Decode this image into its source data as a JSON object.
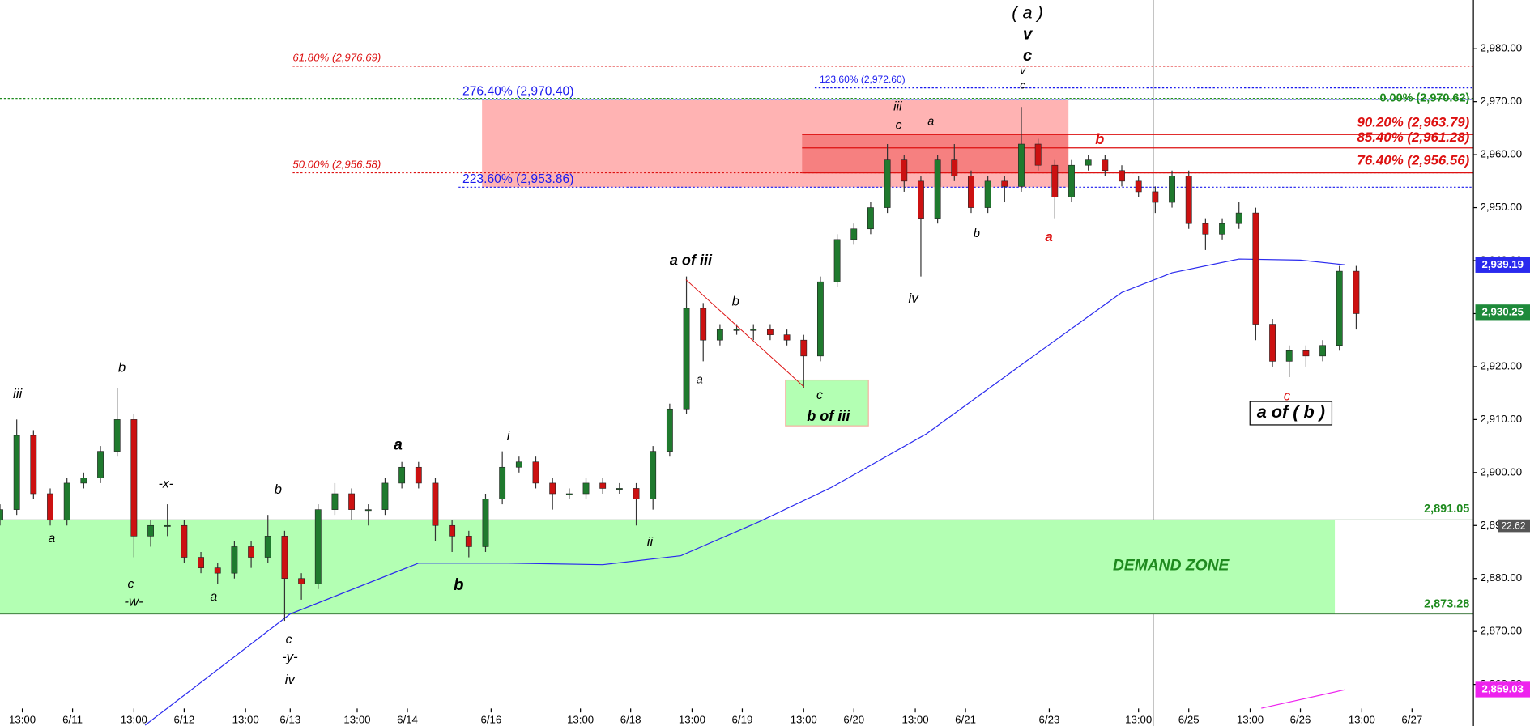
{
  "chart_data": {
    "type": "candlestick",
    "x": [
      0,
      3,
      6,
      9,
      12,
      15,
      18,
      21,
      24,
      27,
      30,
      33,
      36,
      39,
      42,
      45,
      48,
      51,
      54,
      57,
      60,
      63,
      66,
      69,
      72,
      75,
      78,
      81,
      84,
      87,
      90,
      93,
      96,
      99,
      102,
      105,
      108,
      111,
      114,
      117,
      120,
      123,
      126,
      129,
      132,
      135,
      138,
      141,
      144,
      147,
      150,
      153,
      156,
      159,
      162,
      165,
      168,
      171,
      174,
      177,
      180,
      183,
      186,
      189,
      192,
      195,
      198,
      201,
      204,
      207,
      210,
      213,
      216,
      219,
      222,
      225,
      228,
      231,
      234,
      237,
      240,
      243
    ],
    "open": [
      2891,
      2893,
      2907,
      2896,
      2891,
      2898,
      2899,
      2904,
      2910,
      2888,
      2890,
      2890,
      2884,
      2882,
      2881,
      2886,
      2884,
      2888,
      2880,
      2879,
      2893,
      2896,
      2893,
      2893,
      2898,
      2901,
      2898,
      2890,
      2888,
      2886,
      2895,
      2901,
      2902,
      2898,
      2896,
      2896,
      2898,
      2897,
      2897,
      2895,
      2904,
      2912,
      2931,
      2925,
      2927,
      2927,
      2927,
      2926,
      2925,
      2922,
      2936,
      2944,
      2946,
      2950,
      2959,
      2955,
      2948,
      2959,
      2956,
      2950,
      2955,
      2954,
      2962,
      2958,
      2952,
      2958,
      2959,
      2957,
      2955,
      2953,
      2951,
      2956,
      2947,
      2945,
      2947,
      2949,
      2928,
      2921,
      2923,
      2922,
      2924,
      2938
    ],
    "high": [
      2894,
      2910,
      2908,
      2897,
      2899,
      2900,
      2905,
      2916,
      2911,
      2891,
      2894,
      2891,
      2885,
      2883,
      2887,
      2887,
      2892,
      2889,
      2881,
      2894,
      2898,
      2897,
      2894,
      2899,
      2902,
      2902,
      2899,
      2891,
      2889,
      2896,
      2904,
      2903,
      2903,
      2899,
      2897,
      2899,
      2899,
      2898,
      2898,
      2905,
      2913,
      2937,
      2932,
      2928,
      2928,
      2928,
      2928,
      2927,
      2926,
      2937,
      2945,
      2947,
      2951,
      2962,
      2960,
      2956,
      2960,
      2962,
      2957,
      2956,
      2956,
      2969,
      2963,
      2959,
      2959,
      2960,
      2960,
      2958,
      2956,
      2954,
      2957,
      2957,
      2948,
      2948,
      2951,
      2950,
      2929,
      2924,
      2924,
      2925,
      2939,
      2939
    ],
    "low": [
      2890,
      2892,
      2895,
      2890,
      2890,
      2897,
      2898,
      2903,
      2884,
      2886,
      2888,
      2883,
      2881,
      2879,
      2880,
      2882,
      2883,
      2872,
      2876,
      2878,
      2892,
      2891,
      2890,
      2892,
      2897,
      2897,
      2887,
      2885,
      2884,
      2885,
      2894,
      2900,
      2897,
      2893,
      2895,
      2895,
      2896,
      2896,
      2890,
      2893,
      2903,
      2911,
      2921,
      2924,
      2926,
      2925,
      2925,
      2924,
      2916,
      2921,
      2935,
      2943,
      2945,
      2949,
      2953,
      2937,
      2947,
      2955,
      2949,
      2949,
      2951,
      2953,
      2957,
      2948,
      2951,
      2957,
      2956,
      2954,
      2952,
      2949,
      2950,
      2946,
      2942,
      2944,
      2946,
      2925,
      2920,
      2918,
      2920,
      2921,
      2923,
      2927
    ],
    "close": [
      2893,
      2907,
      2896,
      2891,
      2898,
      2899,
      2904,
      2910,
      2888,
      2890,
      2890,
      2884,
      2882,
      2881,
      2886,
      2884,
      2888,
      2880,
      2879,
      2893,
      2896,
      2893,
      2893,
      2898,
      2901,
      2898,
      2890,
      2888,
      2886,
      2895,
      2901,
      2902,
      2898,
      2896,
      2896,
      2898,
      2897,
      2897,
      2895,
      2904,
      2912,
      2931,
      2925,
      2927,
      2927,
      2927,
      2926,
      2925,
      2922,
      2936,
      2944,
      2946,
      2950,
      2959,
      2955,
      2948,
      2959,
      2956,
      2950,
      2955,
      2954,
      2962,
      2958,
      2952,
      2958,
      2959,
      2957,
      2955,
      2953,
      2951,
      2956,
      2947,
      2945,
      2947,
      2949,
      2928,
      2921,
      2923,
      2922,
      2924,
      2938,
      2930
    ],
    "up_color": "#1f7a2e",
    "down_color": "#cc1111",
    "xlim": [
      0,
      264
    ],
    "xticks": [
      {
        "value": 4,
        "label": "13:00"
      },
      {
        "value": 13,
        "label": "6/11"
      },
      {
        "value": 24,
        "label": "13:00"
      },
      {
        "value": 33,
        "label": "6/12"
      },
      {
        "value": 44,
        "label": "13:00"
      },
      {
        "value": 52,
        "label": "6/13"
      },
      {
        "value": 64,
        "label": "13:00"
      },
      {
        "value": 73,
        "label": "6/14"
      },
      {
        "value": 88,
        "label": "6/16"
      },
      {
        "value": 104,
        "label": "13:00"
      },
      {
        "value": 113,
        "label": "6/18"
      },
      {
        "value": 124,
        "label": "13:00"
      },
      {
        "value": 133,
        "label": "6/19"
      },
      {
        "value": 144,
        "label": "13:00"
      },
      {
        "value": 153,
        "label": "6/20"
      },
      {
        "value": 164,
        "label": "13:00"
      },
      {
        "value": 173,
        "label": "6/21"
      },
      {
        "value": 188,
        "label": "6/23"
      },
      {
        "value": 204,
        "label": "13:00"
      },
      {
        "value": 213,
        "label": "6/25"
      },
      {
        "value": 224,
        "label": "13:00"
      },
      {
        "value": 233,
        "label": "6/26"
      },
      {
        "value": 244,
        "label": "13:00"
      },
      {
        "value": 253,
        "label": "6/27"
      }
    ],
    "ylim": [
      2852.15,
      2989.2
    ],
    "yticks": [
      {
        "value": 2980,
        "label": "2,980.00"
      },
      {
        "value": 2970,
        "label": "2,970.00"
      },
      {
        "value": 2960,
        "label": "2,960.00"
      },
      {
        "value": 2950,
        "label": "2,950.00"
      },
      {
        "value": 2940,
        "label": "2,940.00"
      },
      {
        "value": 2930,
        "label": "2,930.00"
      },
      {
        "value": 2920,
        "label": "2,920.00"
      },
      {
        "value": 2910,
        "label": "2,910.00"
      },
      {
        "value": 2900,
        "label": "2,900.00"
      },
      {
        "value": 2890,
        "label": "2,890.00"
      },
      {
        "value": 2880,
        "label": "2,880.00"
      },
      {
        "value": 2870,
        "label": "2,870.00"
      },
      {
        "value": 2860,
        "label": "2,860.00"
      }
    ],
    "lines": [
      {
        "color": "#2a2aee",
        "x": [
          26,
          52,
          75,
          91,
          108,
          122,
          136,
          149,
          166,
          184,
          201,
          210,
          222,
          233,
          241
        ],
        "values": [
          2852.3,
          2873.3,
          2882.9,
          2882.9,
          2882.6,
          2884.3,
          2890.7,
          2897.2,
          2907.3,
          2921.1,
          2934,
          2937.7,
          2940.3,
          2940.1,
          2939.2
        ]
      },
      {
        "color": "#ee22ee",
        "x": [
          226,
          241
        ],
        "values": [
          2855.5,
          2859.0
        ]
      }
    ],
    "levels": [
      {
        "label": "61.80% (2,976.69)",
        "value": 2976.69,
        "color": "#dd1111"
      },
      {
        "label": "50.00% (2,956.58)",
        "value": 2956.58,
        "color": "#dd1111"
      },
      {
        "label": "276.40% (2,970.40)",
        "value": 2970.4,
        "color": "#1a1aee"
      },
      {
        "label": "223.60% (2,953.86)",
        "value": 2953.86,
        "color": "#1a1aee"
      },
      {
        "label": "123.60% (2,972.60)",
        "value": 2972.6,
        "color": "#1a1aee"
      },
      {
        "label": "0.00% (2,970.62)",
        "value": 2970.62,
        "color": "#1e8a1e"
      },
      {
        "label": "90.20% (2,963.79)",
        "value": 2963.79,
        "color": "#dd1111"
      },
      {
        "label": "85.40% (2,961.28)",
        "value": 2961.28,
        "color": "#dd1111"
      },
      {
        "label": "76.40% (2,956.56)",
        "value": 2956.56,
        "color": "#dd1111"
      }
    ],
    "demand_zone": {
      "label": "DEMAND ZONE",
      "top": 2891.05,
      "bottom": 2873.28,
      "top_label": "2,891.05",
      "bottom_label": "2,873.28"
    },
    "price_tags": [
      {
        "value": 2939.19,
        "label": "2,939.19",
        "color": "#2a2aee"
      },
      {
        "value": 2930.25,
        "label": "2,930.25",
        "color": "#1e8a3a"
      },
      {
        "value": 2859.03,
        "label": "2,859.03",
        "color": "#ee22ee"
      }
    ],
    "countdown": "22.62",
    "annotations": [
      "( a )",
      "v",
      "c",
      "v",
      "c",
      "iii",
      "c",
      "a",
      "b",
      "a",
      "b",
      "iv",
      "a of iii",
      "b",
      "a",
      "c",
      "b of iii",
      "iii",
      "b",
      "a",
      "-x-",
      "c",
      "-w-",
      "a",
      "b",
      "c",
      "-y-",
      "iv",
      "a",
      "b",
      "i",
      "ii",
      "c",
      "a of ( b )"
    ]
  }
}
